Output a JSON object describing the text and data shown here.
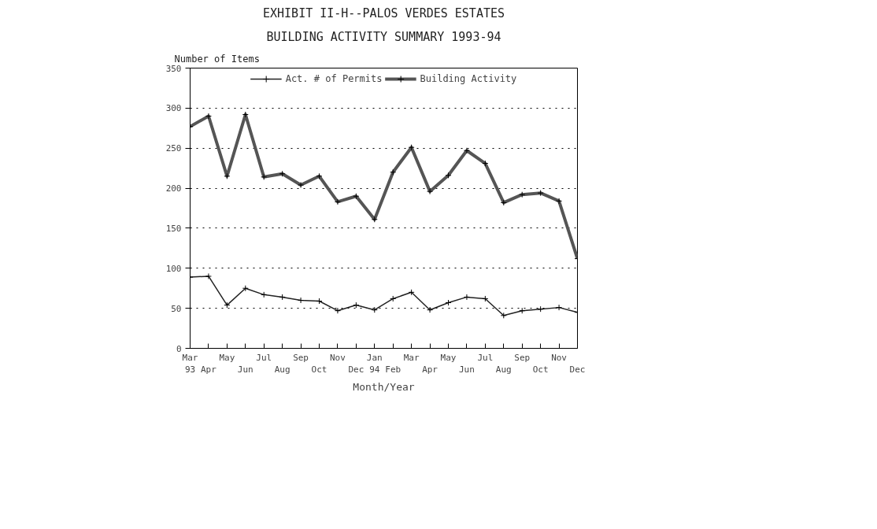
{
  "chart_data": {
    "type": "line",
    "title": "EXHIBIT II-H--PALOS VERDES ESTATES",
    "subtitle": "BUILDING ACTIVITY SUMMARY 1993-94",
    "xlabel": "Month/Year",
    "ylabel": "Number of Items",
    "categories": [
      "Mar 93",
      "Apr",
      "May",
      "Jun",
      "Jul",
      "Aug",
      "Sep",
      "Oct",
      "Nov",
      "Dec",
      "Jan 94",
      "Feb",
      "Mar",
      "Apr",
      "May",
      "Jun",
      "Jul",
      "Aug",
      "Sep",
      "Oct",
      "Nov",
      "Dec"
    ],
    "series": [
      {
        "name": "Act. # of Permits",
        "color": "#222222",
        "values": [
          89,
          90,
          54,
          75,
          67,
          64,
          60,
          59,
          47,
          54,
          48,
          62,
          70,
          48,
          57,
          64,
          62,
          41,
          47,
          49,
          51,
          45
        ]
      },
      {
        "name": "Building Activity",
        "color": "#555555",
        "values": [
          277,
          290,
          215,
          292,
          214,
          218,
          204,
          215,
          183,
          190,
          161,
          220,
          251,
          196,
          216,
          247,
          231,
          182,
          192,
          194,
          184,
          112
        ]
      }
    ],
    "ylim": [
      0,
      350
    ],
    "yticks": [
      0,
      50,
      100,
      150,
      200,
      250,
      300,
      350
    ],
    "grid": "y",
    "legend": "top",
    "marker": "cross",
    "line_style": "solid"
  }
}
